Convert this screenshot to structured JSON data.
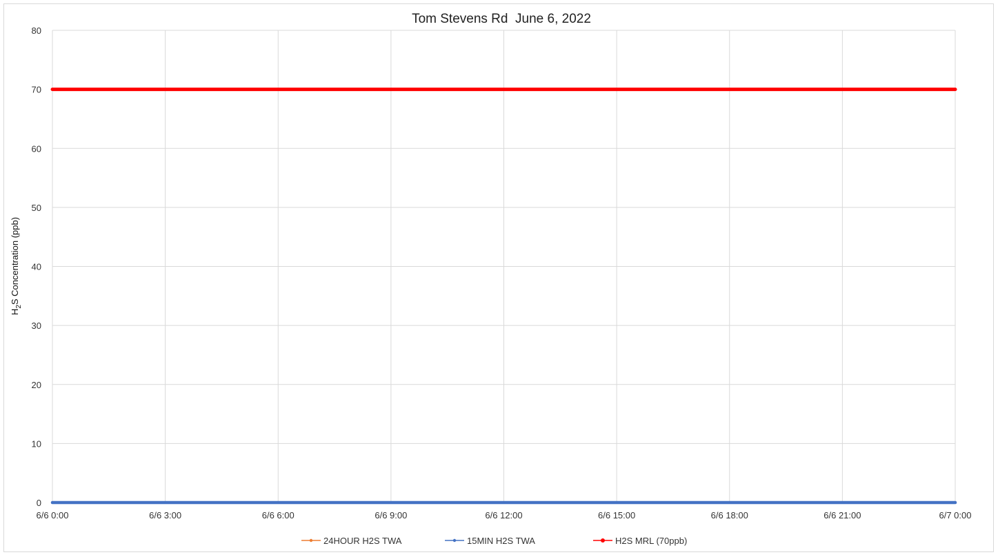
{
  "chart_data": {
    "type": "line",
    "title": "Tom Stevens Rd  June 6, 2022",
    "ylabel": {
      "prefix": "H",
      "subscript": "2",
      "suffix": "S Concentration (ppb)"
    },
    "xlabel": "",
    "ylim": [
      0,
      80
    ],
    "yticks": [
      "0",
      "10",
      "20",
      "30",
      "40",
      "50",
      "60",
      "70",
      "80"
    ],
    "x_hours_range": [
      0,
      24
    ],
    "xticks": [
      "6/6 0:00",
      "6/6 3:00",
      "6/6 6:00",
      "6/6 9:00",
      "6/6 12:00",
      "6/6 15:00",
      "6/6 18:00",
      "6/6 21:00",
      "6/7 0:00"
    ],
    "grid": true,
    "legend_position": "bottom",
    "series": [
      {
        "name": "24HOUR H2S TWA",
        "color": "#ED7D31",
        "x": [
          "6/6 0:00",
          "6/7 0:00"
        ],
        "values": [
          0,
          0
        ]
      },
      {
        "name": "15MIN H2S TWA",
        "color": "#4472C4",
        "x": [
          "6/6 0:00",
          "6/6 3:00",
          "6/6 6:00",
          "6/6 9:00",
          "6/6 12:00",
          "6/6 15:00",
          "6/6 18:00",
          "6/6 21:00",
          "6/7 0:00"
        ],
        "values": [
          0,
          0,
          0,
          0,
          0,
          0,
          0,
          0,
          0
        ]
      },
      {
        "name": "H2S MRL (70ppb)",
        "color": "#FF0000",
        "x": [
          "6/6 0:00",
          "6/7 0:00"
        ],
        "values": [
          70,
          70
        ]
      }
    ]
  }
}
